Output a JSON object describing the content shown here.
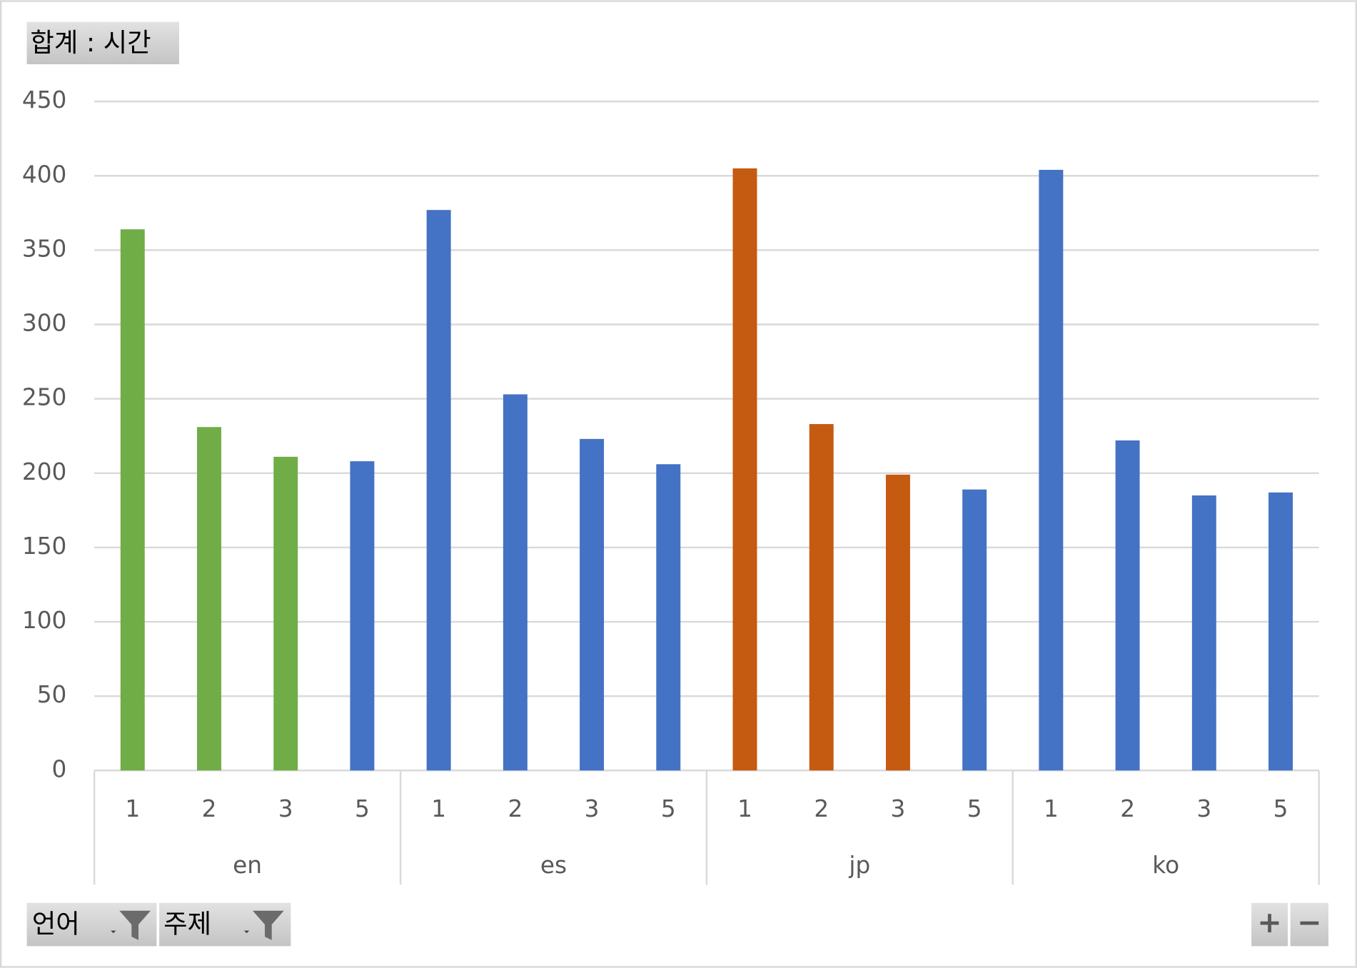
{
  "chart_data": {
    "type": "bar",
    "title": "합계 : 시간",
    "groups": [
      {
        "name": "en",
        "categories": [
          "1",
          "2",
          "3",
          "5"
        ],
        "values": [
          364,
          231,
          211,
          208
        ],
        "colors": [
          "#70ad47",
          "#70ad47",
          "#70ad47",
          "#4472c4"
        ]
      },
      {
        "name": "es",
        "categories": [
          "1",
          "2",
          "3",
          "5"
        ],
        "values": [
          377,
          253,
          223,
          206
        ],
        "colors": [
          "#4472c4",
          "#4472c4",
          "#4472c4",
          "#4472c4"
        ]
      },
      {
        "name": "jp",
        "categories": [
          "1",
          "2",
          "3",
          "5"
        ],
        "values": [
          405,
          233,
          199,
          189
        ],
        "colors": [
          "#c55a11",
          "#c55a11",
          "#c55a11",
          "#4472c4"
        ]
      },
      {
        "name": "ko",
        "categories": [
          "1",
          "2",
          "3",
          "5"
        ],
        "values": [
          404,
          222,
          185,
          187
        ],
        "colors": [
          "#4472c4",
          "#4472c4",
          "#4472c4",
          "#4472c4"
        ]
      }
    ],
    "ylim": [
      0,
      450
    ],
    "yticks": [
      0,
      50,
      100,
      150,
      200,
      250,
      300,
      350,
      400,
      450
    ],
    "grid": true,
    "filters": [
      "언어",
      "주제"
    ],
    "zoom_buttons": [
      "+",
      "−"
    ]
  }
}
